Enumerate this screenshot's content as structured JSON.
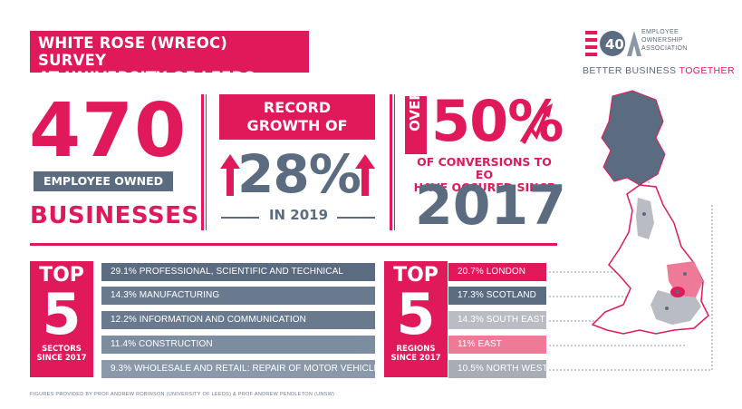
{
  "title": {
    "line1": "WHITE ROSE (WREOC) SURVEY",
    "line2": "AT UNIVERSITY OF LEEDS"
  },
  "logo": {
    "mark": "40",
    "words": [
      "EMPLOYEE",
      "OWNERSHIP",
      "ASSOCIATION"
    ],
    "tagline_a": "BETTER BUSINESS ",
    "tagline_b": "TOGETHER"
  },
  "stat1": {
    "value": "470",
    "label": "EMPLOYEE OWNED",
    "label2": "BUSINESSES"
  },
  "stat2": {
    "heading_line1": "RECORD",
    "heading_line2": "GROWTH OF",
    "value": "28%",
    "sub": "IN 2019"
  },
  "stat3": {
    "over": "OVER",
    "value": "50%",
    "line1": "OF CONVERSIONS TO EO",
    "line2": "HAVE OCCURED SINCE",
    "year": "2017"
  },
  "sectors": {
    "top": "TOP",
    "num": "5",
    "sub1": "SECTORS",
    "sub2": "SINCE 2017",
    "items": [
      {
        "pct": "29.1%",
        "label": " PROFESSIONAL, SCIENTIFIC AND TECHNICAL",
        "value": 29.1
      },
      {
        "pct": "14.3%",
        "label": " MANUFACTURING",
        "value": 14.3
      },
      {
        "pct": "12.2%",
        "label": " INFORMATION AND COMMUNICATION",
        "value": 12.2
      },
      {
        "pct": "11.4%",
        "label": " CONSTRUCTION",
        "value": 11.4
      },
      {
        "pct": "9.3%",
        "label": " WHOLESALE AND RETAIL: REPAIR OF MOTOR VEHICLES",
        "value": 9.3
      }
    ]
  },
  "regions": {
    "top": "TOP",
    "num": "5",
    "sub1": "REGIONS",
    "sub2": "SINCE 2017",
    "items": [
      {
        "pct": "20.7%",
        "label": " LONDON",
        "value": 20.7
      },
      {
        "pct": "17.3%",
        "label": " SCOTLAND",
        "value": 17.3
      },
      {
        "pct": "14.3%",
        "label": " SOUTH EAST",
        "value": 14.3
      },
      {
        "pct": "11%",
        "label": " EAST",
        "value": 11
      },
      {
        "pct": "10.5%",
        "label": " NORTH WEST",
        "value": 10.5
      }
    ]
  },
  "colors": {
    "pink": "#e0195a",
    "slate": "#5b6b80",
    "slate_light": "#7d8da0",
    "grey": "#b9bcc2",
    "pink_light": "#ef7a98"
  },
  "footnote": "FIGURES PROVIDED BY PROF ANDREW ROBINSON (UNIVERSITY OF LEEDS) & PROF ANDREW PENDLETON (UNSW)"
}
